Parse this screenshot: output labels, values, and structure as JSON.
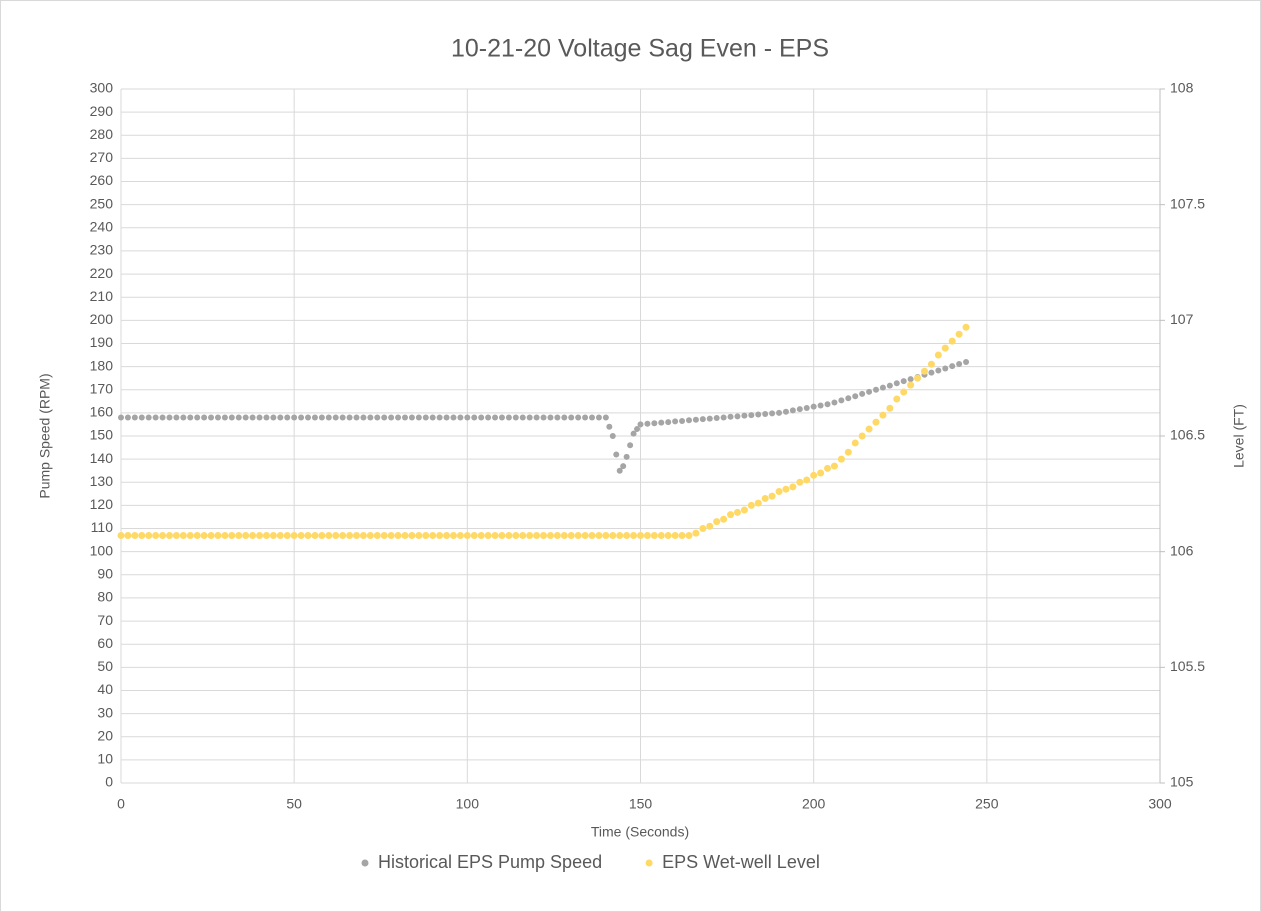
{
  "chart_data": {
    "type": "scatter",
    "title": "10-21-20 Voltage Sag Even - EPS",
    "xlabel": "Time (Seconds)",
    "ylabel": "Pump Speed (RPM)",
    "y2label": "Level (FT)",
    "xlim": [
      0,
      300
    ],
    "xticks": [
      0,
      50,
      100,
      150,
      200,
      250,
      300
    ],
    "ylim": [
      0,
      300
    ],
    "yticks": [
      0,
      10,
      20,
      30,
      40,
      50,
      60,
      70,
      80,
      90,
      100,
      110,
      120,
      130,
      140,
      150,
      160,
      170,
      180,
      190,
      200,
      210,
      220,
      230,
      240,
      250,
      260,
      270,
      280,
      290,
      300
    ],
    "y2lim": [
      105,
      108
    ],
    "y2ticks": [
      105,
      105.5,
      106,
      106.5,
      107,
      107.5,
      108
    ],
    "grid": true,
    "legend": "bottom",
    "series": [
      {
        "name": "Historical EPS Pump Speed",
        "color": "#a5a5a5",
        "x": [
          0,
          2,
          4,
          6,
          8,
          10,
          12,
          14,
          16,
          18,
          20,
          22,
          24,
          26,
          28,
          30,
          32,
          34,
          36,
          38,
          40,
          42,
          44,
          46,
          48,
          50,
          52,
          54,
          56,
          58,
          60,
          62,
          64,
          66,
          68,
          70,
          72,
          74,
          76,
          78,
          80,
          82,
          84,
          86,
          88,
          90,
          92,
          94,
          96,
          98,
          100,
          102,
          104,
          106,
          108,
          110,
          112,
          114,
          116,
          118,
          120,
          122,
          124,
          126,
          128,
          130,
          132,
          134,
          136,
          138,
          140,
          141,
          142,
          143,
          144,
          145,
          146,
          147,
          148,
          149,
          150,
          152,
          154,
          156,
          158,
          160,
          162,
          164,
          166,
          168,
          170,
          172,
          174,
          176,
          178,
          180,
          182,
          184,
          186,
          188,
          190,
          192,
          194,
          196,
          198,
          200,
          202,
          204,
          206,
          208,
          210,
          212,
          214,
          216,
          218,
          220,
          222,
          224,
          226,
          228,
          230,
          232,
          234,
          236,
          238,
          240,
          242,
          244
        ],
        "values": [
          158,
          158,
          158,
          158,
          158,
          158,
          158,
          158,
          158,
          158,
          158,
          158,
          158,
          158,
          158,
          158,
          158,
          158,
          158,
          158,
          158,
          158,
          158,
          158,
          158,
          158,
          158,
          158,
          158,
          158,
          158,
          158,
          158,
          158,
          158,
          158,
          158,
          158,
          158,
          158,
          158,
          158,
          158,
          158,
          158,
          158,
          158,
          158,
          158,
          158,
          158,
          158,
          158,
          158,
          158,
          158,
          158,
          158,
          158,
          158,
          158,
          158,
          158,
          158,
          158,
          158,
          158,
          158,
          158,
          158,
          158,
          154,
          150,
          142,
          135,
          137,
          141,
          146,
          151,
          153,
          155,
          155.3,
          155.5,
          155.8,
          156,
          156.3,
          156.5,
          156.8,
          157,
          157.3,
          157.5,
          157.8,
          158,
          158.3,
          158.5,
          158.8,
          159,
          159.3,
          159.5,
          159.8,
          160,
          160.5,
          161.1,
          161.6,
          162.1,
          162.7,
          163.2,
          163.7,
          164.5,
          165.4,
          166.3,
          167.2,
          168.2,
          169.1,
          170,
          170.9,
          171.8,
          172.8,
          173.7,
          174.6,
          175.5,
          176.5,
          177.4,
          178.3,
          179.2,
          180.2,
          181.1,
          182
        ]
      },
      {
        "name": "EPS Wet-well Level",
        "color": "#ffd966",
        "axis": "y2",
        "x": [
          0,
          2,
          4,
          6,
          8,
          10,
          12,
          14,
          16,
          18,
          20,
          22,
          24,
          26,
          28,
          30,
          32,
          34,
          36,
          38,
          40,
          42,
          44,
          46,
          48,
          50,
          52,
          54,
          56,
          58,
          60,
          62,
          64,
          66,
          68,
          70,
          72,
          74,
          76,
          78,
          80,
          82,
          84,
          86,
          88,
          90,
          92,
          94,
          96,
          98,
          100,
          102,
          104,
          106,
          108,
          110,
          112,
          114,
          116,
          118,
          120,
          122,
          124,
          126,
          128,
          130,
          132,
          134,
          136,
          138,
          140,
          142,
          144,
          146,
          148,
          150,
          152,
          154,
          156,
          158,
          160,
          162,
          164,
          166,
          168,
          170,
          172,
          174,
          176,
          178,
          180,
          182,
          184,
          186,
          188,
          190,
          192,
          194,
          196,
          198,
          200,
          202,
          204,
          206,
          208,
          210,
          212,
          214,
          216,
          218,
          220,
          222,
          224,
          226,
          228,
          230,
          232,
          234,
          236,
          238,
          240,
          242,
          244
        ],
        "values": [
          106.07,
          106.07,
          106.07,
          106.07,
          106.07,
          106.07,
          106.07,
          106.07,
          106.07,
          106.07,
          106.07,
          106.07,
          106.07,
          106.07,
          106.07,
          106.07,
          106.07,
          106.07,
          106.07,
          106.07,
          106.07,
          106.07,
          106.07,
          106.07,
          106.07,
          106.07,
          106.07,
          106.07,
          106.07,
          106.07,
          106.07,
          106.07,
          106.07,
          106.07,
          106.07,
          106.07,
          106.07,
          106.07,
          106.07,
          106.07,
          106.07,
          106.07,
          106.07,
          106.07,
          106.07,
          106.07,
          106.07,
          106.07,
          106.07,
          106.07,
          106.07,
          106.07,
          106.07,
          106.07,
          106.07,
          106.07,
          106.07,
          106.07,
          106.07,
          106.07,
          106.07,
          106.07,
          106.07,
          106.07,
          106.07,
          106.07,
          106.07,
          106.07,
          106.07,
          106.07,
          106.07,
          106.07,
          106.07,
          106.07,
          106.07,
          106.07,
          106.07,
          106.07,
          106.07,
          106.07,
          106.07,
          106.07,
          106.07,
          106.08,
          106.1,
          106.11,
          106.13,
          106.14,
          106.16,
          106.17,
          106.18,
          106.2,
          106.21,
          106.23,
          106.24,
          106.26,
          106.27,
          106.28,
          106.3,
          106.31,
          106.33,
          106.34,
          106.36,
          106.37,
          106.4,
          106.43,
          106.47,
          106.5,
          106.53,
          106.56,
          106.59,
          106.62,
          106.66,
          106.69,
          106.72,
          106.75,
          106.78,
          106.81,
          106.85,
          106.88,
          106.91,
          106.94,
          106.97
        ]
      }
    ]
  }
}
